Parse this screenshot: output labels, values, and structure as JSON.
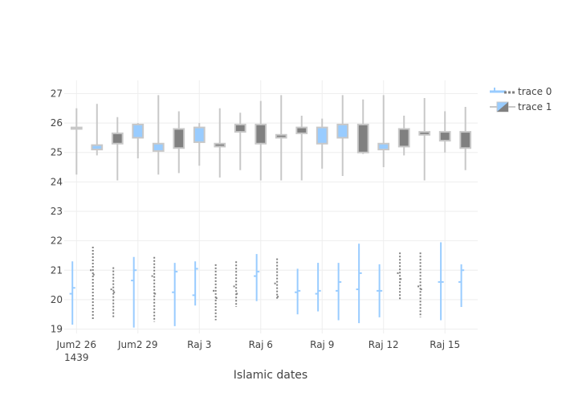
{
  "chart_data": {
    "type": "ohlc-candlestick",
    "title": "",
    "xlabel": "Islamic dates",
    "ylabel": "",
    "xlim_days": [
      -0.6,
      19.6
    ],
    "ylim": [
      18.85,
      27.45
    ],
    "x_ticks": [
      {
        "day": 0,
        "label": "Jum2 26",
        "sublabel": "1439"
      },
      {
        "day": 3,
        "label": "Jum2 29",
        "sublabel": ""
      },
      {
        "day": 6,
        "label": "Raj 3",
        "sublabel": ""
      },
      {
        "day": 9,
        "label": "Raj 6",
        "sublabel": ""
      },
      {
        "day": 12,
        "label": "Raj 9",
        "sublabel": ""
      },
      {
        "day": 15,
        "label": "Raj 12",
        "sublabel": ""
      },
      {
        "day": 18,
        "label": "Raj 15",
        "sublabel": ""
      }
    ],
    "y_ticks": [
      19,
      20,
      21,
      22,
      23,
      24,
      25,
      26,
      27
    ],
    "colors": {
      "increasing": "#99ccff",
      "decreasing": "#808080",
      "whisker": "#c8c8c8",
      "grid": "#eeeeee"
    },
    "series": [
      {
        "name": "trace 0",
        "kind": "ohlc",
        "points": [
          {
            "day": 0,
            "open": 20.2,
            "high": 21.3,
            "low": 19.15,
            "close": 20.4
          },
          {
            "day": 1,
            "open": 21.0,
            "high": 21.8,
            "low": 19.3,
            "close": 20.85
          },
          {
            "day": 2,
            "open": 20.35,
            "high": 21.1,
            "low": 19.4,
            "close": 20.25
          },
          {
            "day": 3,
            "open": 20.65,
            "high": 21.45,
            "low": 19.05,
            "close": 21.0
          },
          {
            "day": 4,
            "open": 20.8,
            "high": 21.45,
            "low": 19.25,
            "close": 20.2
          },
          {
            "day": 5,
            "open": 20.25,
            "high": 21.25,
            "low": 19.1,
            "close": 20.95
          },
          {
            "day": 6,
            "open": 20.15,
            "high": 21.3,
            "low": 19.8,
            "close": 21.05
          },
          {
            "day": 7,
            "open": 20.3,
            "high": 21.2,
            "low": 19.3,
            "close": 20.05
          },
          {
            "day": 8,
            "open": 20.45,
            "high": 21.3,
            "low": 19.75,
            "close": 20.2
          },
          {
            "day": 9,
            "open": 20.8,
            "high": 21.55,
            "low": 19.95,
            "close": 20.95
          },
          {
            "day": 10,
            "open": 20.55,
            "high": 21.4,
            "low": 20.0,
            "close": 20.1
          },
          {
            "day": 11,
            "open": 20.25,
            "high": 21.05,
            "low": 19.5,
            "close": 20.3
          },
          {
            "day": 12,
            "open": 20.2,
            "high": 21.25,
            "low": 19.6,
            "close": 20.3
          },
          {
            "day": 13,
            "open": 20.3,
            "high": 21.25,
            "low": 19.3,
            "close": 20.6
          },
          {
            "day": 14,
            "open": 20.35,
            "high": 21.9,
            "low": 19.2,
            "close": 20.9
          },
          {
            "day": 15,
            "open": 20.3,
            "high": 21.2,
            "low": 19.4,
            "close": 20.3
          },
          {
            "day": 16,
            "open": 20.9,
            "high": 21.6,
            "low": 20.0,
            "close": 20.7
          },
          {
            "day": 17,
            "open": 20.45,
            "high": 21.6,
            "low": 19.4,
            "close": 20.35
          },
          {
            "day": 18,
            "open": 20.6,
            "high": 21.95,
            "low": 19.3,
            "close": 20.6
          },
          {
            "day": 19,
            "open": 20.6,
            "high": 21.2,
            "low": 19.75,
            "close": 21.0
          }
        ]
      },
      {
        "name": "trace 1",
        "kind": "candlestick",
        "points": [
          {
            "day": 0,
            "open": 25.85,
            "high": 26.5,
            "low": 24.25,
            "close": 25.8
          },
          {
            "day": 1,
            "open": 25.1,
            "high": 26.65,
            "low": 24.9,
            "close": 25.25
          },
          {
            "day": 2,
            "open": 25.65,
            "high": 26.2,
            "low": 24.05,
            "close": 25.3
          },
          {
            "day": 3,
            "open": 25.5,
            "high": 26.0,
            "low": 24.8,
            "close": 25.95
          },
          {
            "day": 4,
            "open": 25.05,
            "high": 26.95,
            "low": 24.25,
            "close": 25.3
          },
          {
            "day": 5,
            "open": 25.8,
            "high": 26.4,
            "low": 24.3,
            "close": 25.15
          },
          {
            "day": 6,
            "open": 25.35,
            "high": 26.0,
            "low": 24.55,
            "close": 25.85
          },
          {
            "day": 7,
            "open": 25.3,
            "high": 26.5,
            "low": 24.15,
            "close": 25.2
          },
          {
            "day": 8,
            "open": 25.95,
            "high": 26.35,
            "low": 24.4,
            "close": 25.7
          },
          {
            "day": 9,
            "open": 25.95,
            "high": 26.75,
            "low": 24.05,
            "close": 25.3
          },
          {
            "day": 10,
            "open": 25.6,
            "high": 26.95,
            "low": 24.05,
            "close": 25.5
          },
          {
            "day": 11,
            "open": 25.85,
            "high": 26.25,
            "low": 24.05,
            "close": 25.65
          },
          {
            "day": 12,
            "open": 25.3,
            "high": 26.15,
            "low": 24.45,
            "close": 25.85
          },
          {
            "day": 13,
            "open": 25.5,
            "high": 26.95,
            "low": 24.2,
            "close": 25.95
          },
          {
            "day": 14,
            "open": 25.95,
            "high": 26.8,
            "low": 24.95,
            "close": 25.0
          },
          {
            "day": 15,
            "open": 25.1,
            "high": 26.95,
            "low": 24.5,
            "close": 25.3
          },
          {
            "day": 16,
            "open": 25.8,
            "high": 26.25,
            "low": 24.9,
            "close": 25.2
          },
          {
            "day": 17,
            "open": 25.7,
            "high": 26.85,
            "low": 24.05,
            "close": 25.6
          },
          {
            "day": 18,
            "open": 25.7,
            "high": 26.4,
            "low": 25.0,
            "close": 25.4
          },
          {
            "day": 19,
            "open": 25.7,
            "high": 26.55,
            "low": 24.4,
            "close": 25.15
          }
        ]
      }
    ],
    "legend": {
      "placement": "top-right",
      "entries": [
        "trace 0",
        "trace 1"
      ]
    }
  }
}
